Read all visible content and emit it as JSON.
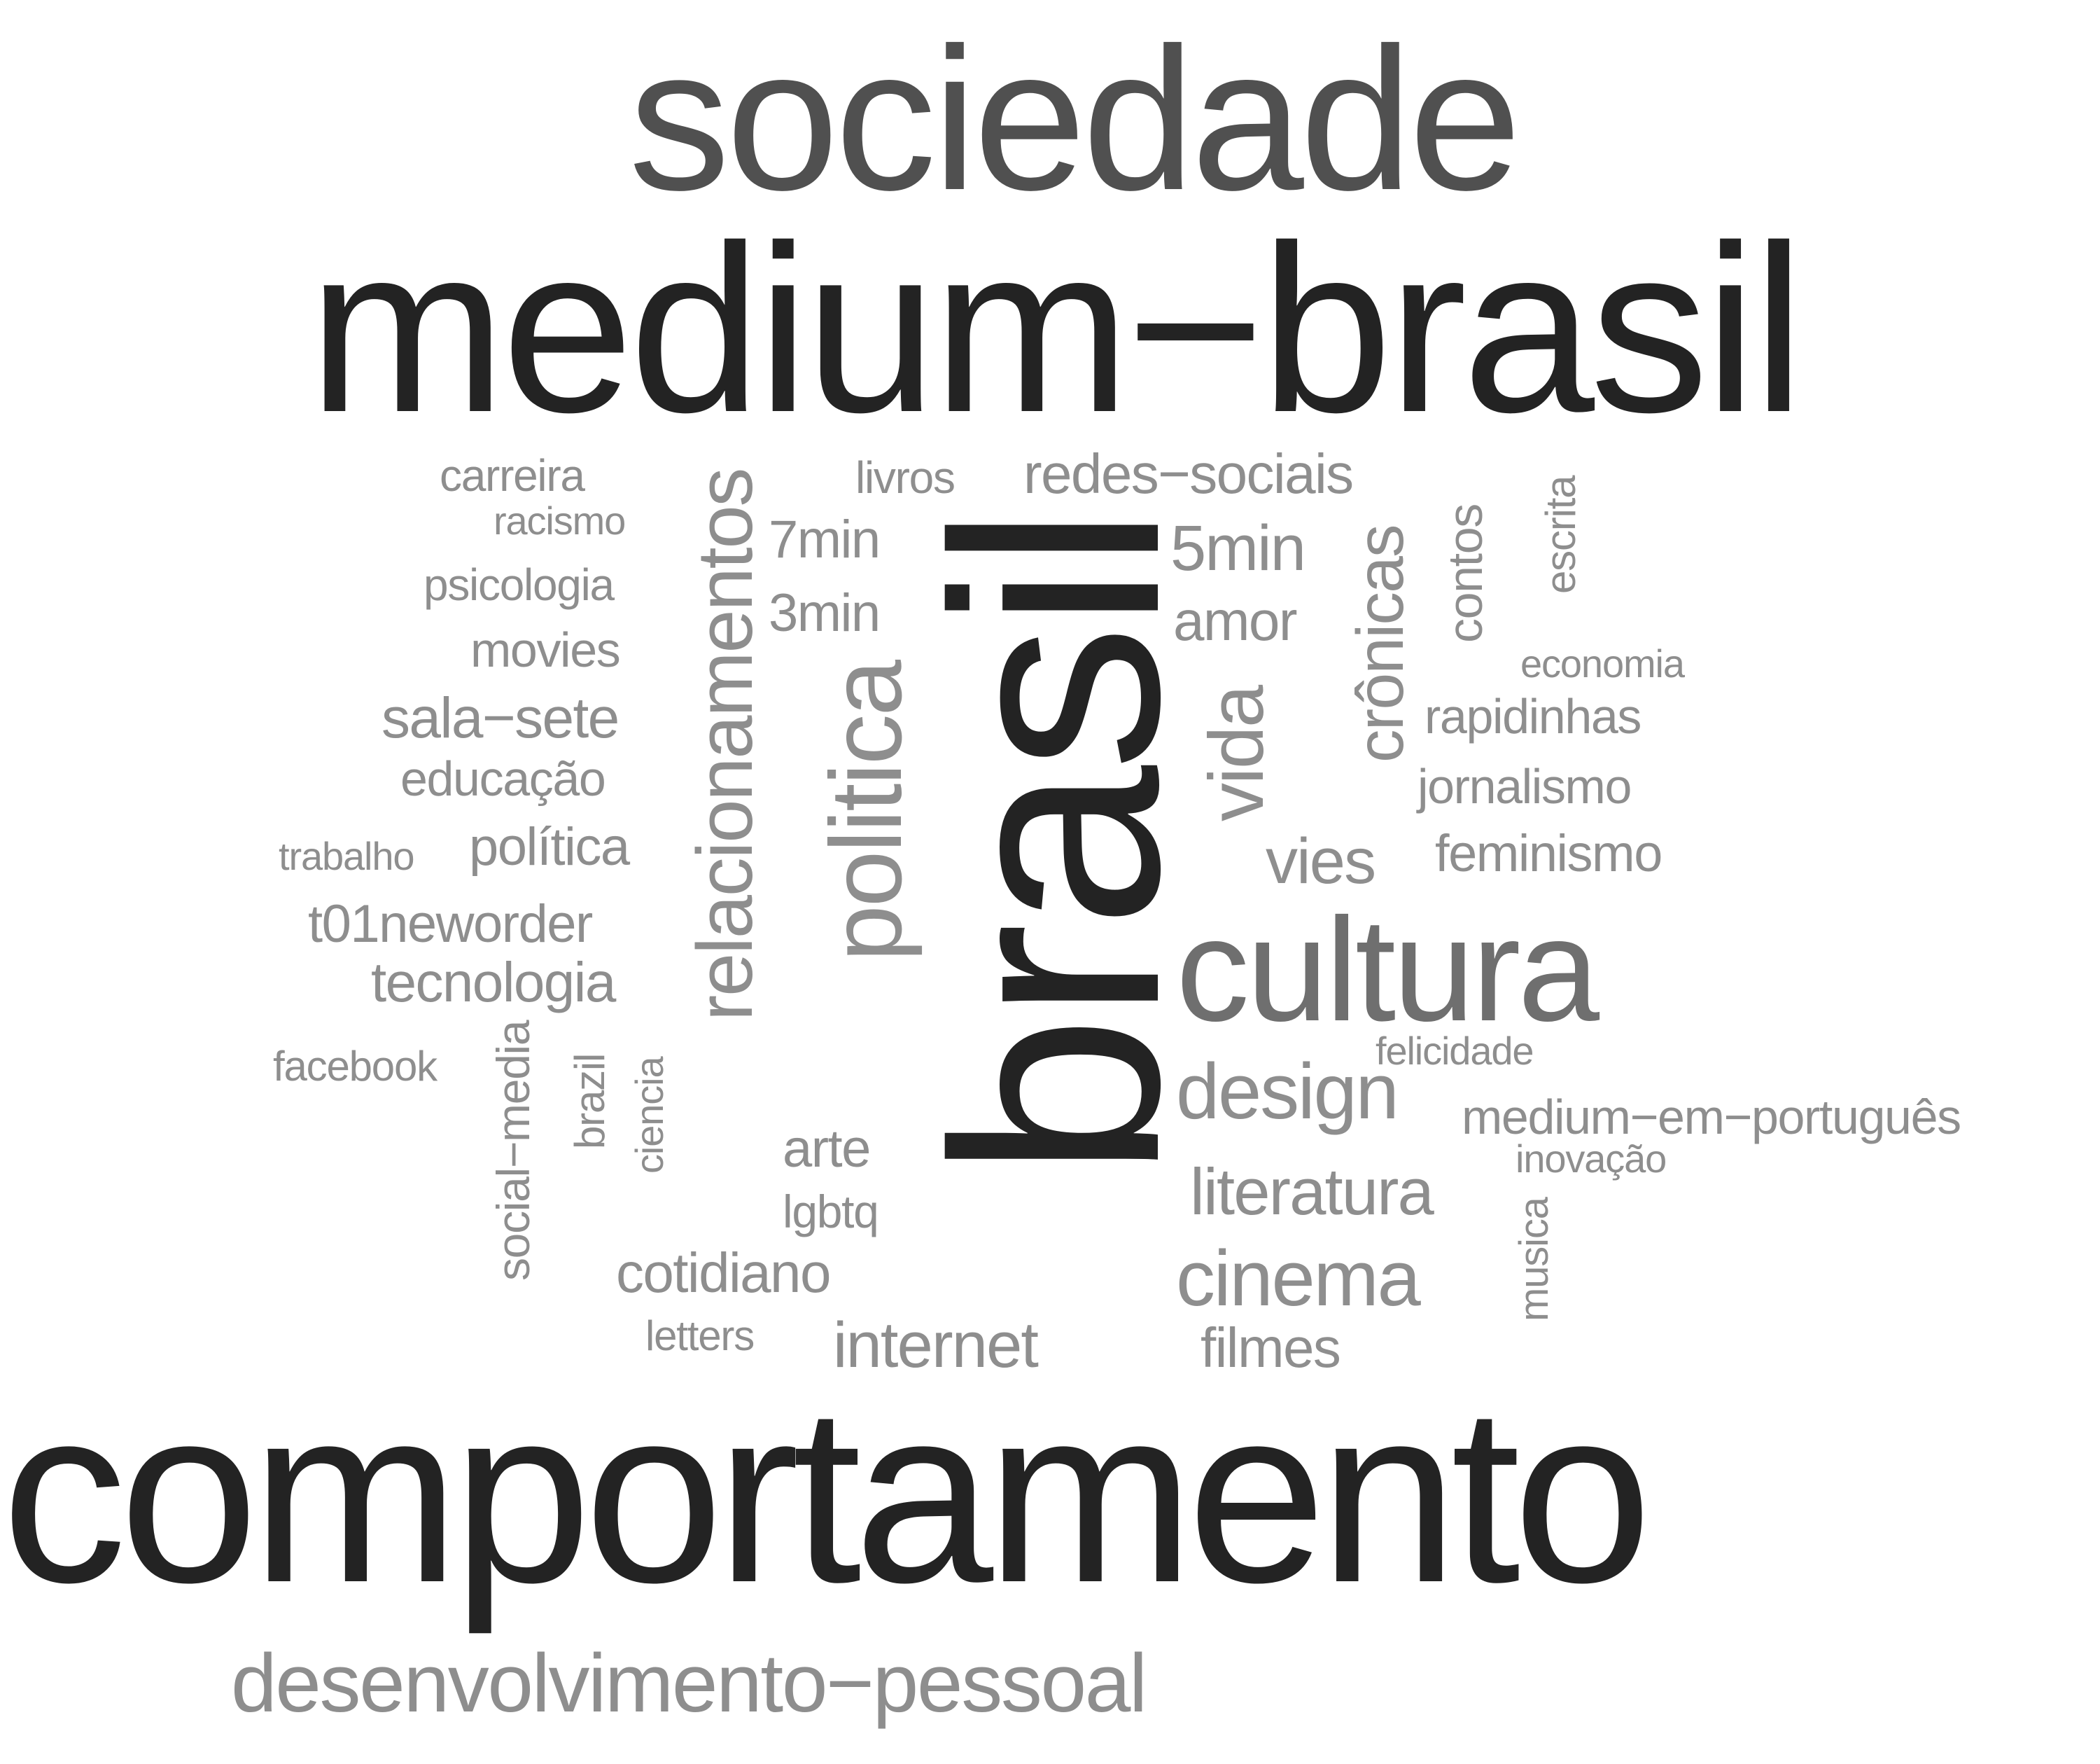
{
  "colors": {
    "darkest": "#232323",
    "dark": "#505050",
    "mid": "#6f6f6f",
    "light": "#8e8e8e",
    "lightest": "#9a9a9a"
  },
  "words": [
    {
      "id": "comportamento",
      "text": "comportamento",
      "color": "darkest",
      "rotated": false
    },
    {
      "id": "medium-brasil",
      "text": "medium−brasil",
      "color": "darkest",
      "rotated": false
    },
    {
      "id": "brasil",
      "text": "brasil",
      "color": "darkest",
      "rotated": true
    },
    {
      "id": "sociedade",
      "text": "sociedade",
      "color": "dark",
      "rotated": false
    },
    {
      "id": "cultura",
      "text": "cultura",
      "color": "mid",
      "rotated": false
    },
    {
      "id": "politica",
      "text": "politica",
      "color": "light",
      "rotated": true
    },
    {
      "id": "relacionamentos",
      "text": "relacionamentos",
      "color": "light",
      "rotated": true
    },
    {
      "id": "desenvolvimento-pessoal",
      "text": "desenvolvimento−pessoal",
      "color": "light",
      "rotated": false
    },
    {
      "id": "vida",
      "text": "vida",
      "color": "light",
      "rotated": true
    },
    {
      "id": "design",
      "text": "design",
      "color": "light",
      "rotated": false
    },
    {
      "id": "cinema",
      "text": "cinema",
      "color": "light",
      "rotated": false
    },
    {
      "id": "cronicas",
      "text": "crônicas",
      "color": "light",
      "rotated": true
    },
    {
      "id": "5min",
      "text": "5min",
      "color": "light",
      "rotated": false
    },
    {
      "id": "vies",
      "text": "vies",
      "color": "light",
      "rotated": false
    },
    {
      "id": "literatura",
      "text": "literatura",
      "color": "light",
      "rotated": false
    },
    {
      "id": "internet",
      "text": "internet",
      "color": "light",
      "rotated": false
    },
    {
      "id": "amor",
      "text": "amor",
      "color": "light",
      "rotated": false
    },
    {
      "id": "redes-sociais",
      "text": "redes−sociais",
      "color": "light",
      "rotated": false
    },
    {
      "id": "sala-sete",
      "text": "sala−sete",
      "color": "light",
      "rotated": false
    },
    {
      "id": "cotidiano",
      "text": "cotidiano",
      "color": "light",
      "rotated": false
    },
    {
      "id": "filmes",
      "text": "filmes",
      "color": "light",
      "rotated": false
    },
    {
      "id": "tecnologia",
      "text": "tecnologia",
      "color": "light",
      "rotated": false
    },
    {
      "id": "arte",
      "text": "arte",
      "color": "light",
      "rotated": false
    },
    {
      "id": "7min",
      "text": "7min",
      "color": "light",
      "rotated": false
    },
    {
      "id": "3min",
      "text": "3min",
      "color": "light",
      "rotated": false
    },
    {
      "id": "t01neworder",
      "text": "t01neworder",
      "color": "light",
      "rotated": false
    },
    {
      "id": "politica-accent",
      "text": "política",
      "color": "light",
      "rotated": false
    },
    {
      "id": "feminismo",
      "text": "feminismo",
      "color": "light",
      "rotated": false
    },
    {
      "id": "medium-em-portugues",
      "text": "medium−em−português",
      "color": "light",
      "rotated": false
    },
    {
      "id": "educacao",
      "text": "educação",
      "color": "light",
      "rotated": false
    },
    {
      "id": "jornalismo",
      "text": "jornalismo",
      "color": "light",
      "rotated": false
    },
    {
      "id": "rapidinhas",
      "text": "rapidinhas",
      "color": "light",
      "rotated": false
    },
    {
      "id": "contos",
      "text": "contos",
      "color": "light",
      "rotated": true
    },
    {
      "id": "movies",
      "text": "movies",
      "color": "light",
      "rotated": false
    },
    {
      "id": "psicologia",
      "text": "psicologia",
      "color": "light",
      "rotated": false
    },
    {
      "id": "carreira",
      "text": "carreira",
      "color": "light",
      "rotated": false
    },
    {
      "id": "social-media",
      "text": "social−media",
      "color": "light",
      "rotated": true
    },
    {
      "id": "lgbtq",
      "text": "lgbtq",
      "color": "light",
      "rotated": false
    },
    {
      "id": "livros",
      "text": "livros",
      "color": "light",
      "rotated": false
    },
    {
      "id": "escrita",
      "text": "escrita",
      "color": "light",
      "rotated": true
    },
    {
      "id": "facebook",
      "text": "facebook",
      "color": "light",
      "rotated": false
    },
    {
      "id": "letters",
      "text": "letters",
      "color": "light",
      "rotated": false
    },
    {
      "id": "brazil",
      "text": "brazil",
      "color": "light",
      "rotated": true
    },
    {
      "id": "ciencia",
      "text": "ciencia",
      "color": "light",
      "rotated": true
    },
    {
      "id": "musica",
      "text": "musica",
      "color": "light",
      "rotated": true
    },
    {
      "id": "racismo",
      "text": "racismo",
      "color": "light",
      "rotated": false
    },
    {
      "id": "trabalho",
      "text": "trabalho",
      "color": "light",
      "rotated": false
    },
    {
      "id": "economia",
      "text": "economia",
      "color": "light",
      "rotated": false
    },
    {
      "id": "felicidade",
      "text": "felicidade",
      "color": "light",
      "rotated": false
    },
    {
      "id": "inovacao",
      "text": "inovação",
      "color": "light",
      "rotated": false
    }
  ]
}
